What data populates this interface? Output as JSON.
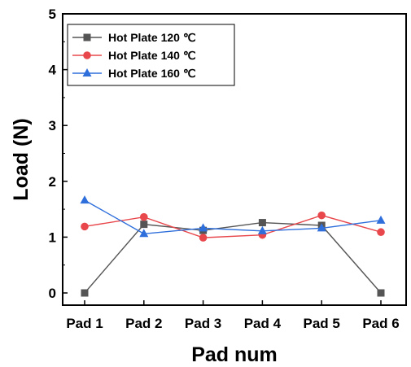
{
  "chart_data": {
    "type": "line",
    "categories": [
      "Pad 1",
      "Pad 2",
      "Pad 3",
      "Pad 4",
      "Pad 5",
      "Pad 6"
    ],
    "xlabel": "Pad num",
    "ylabel": "Load  (N)",
    "ylim": [
      0,
      5
    ],
    "yticks": [
      "0",
      "1",
      "2",
      "3",
      "4",
      "5"
    ],
    "grid": false,
    "legend_position": "top-left",
    "series": [
      {
        "name": "Hot Plate 120 ℃",
        "color": "#555555",
        "marker": "square",
        "values": [
          0.0,
          1.23,
          1.12,
          1.26,
          1.21,
          0.0
        ]
      },
      {
        "name": "Hot Plate 140 ℃",
        "color": "#e8484c",
        "marker": "circle",
        "values": [
          1.19,
          1.36,
          0.99,
          1.04,
          1.39,
          1.09
        ]
      },
      {
        "name": "Hot Plate 160 ℃",
        "color": "#2f6fdc",
        "marker": "triangle",
        "values": [
          1.66,
          1.06,
          1.16,
          1.11,
          1.16,
          1.3
        ]
      }
    ]
  }
}
